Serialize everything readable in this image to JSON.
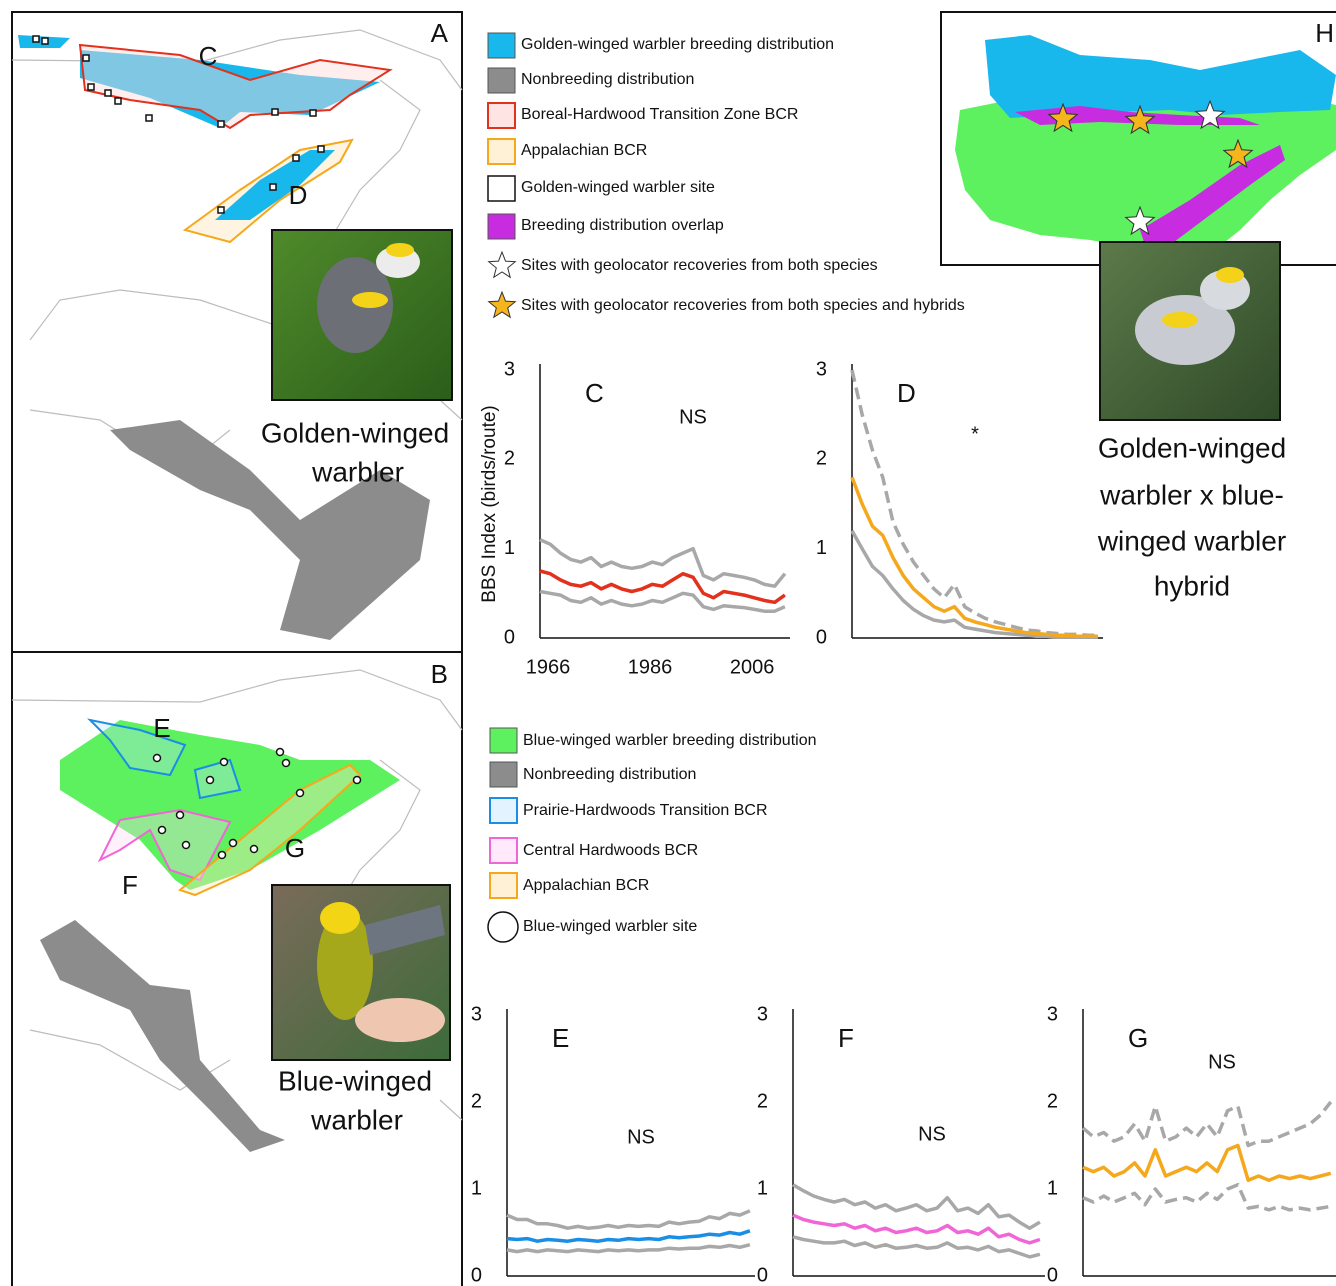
{
  "panel_a": {
    "label": "A",
    "region_labels": [
      "C",
      "D"
    ],
    "caption": [
      "Golden-winged",
      "warbler"
    ]
  },
  "panel_b": {
    "label": "B",
    "region_labels": [
      "E",
      "F",
      "G"
    ],
    "caption": [
      "Blue-winged",
      "warbler"
    ]
  },
  "panel_h": {
    "label": "H",
    "caption": [
      "Golden-winged",
      "warbler x blue-",
      "winged warbler",
      "hybrid"
    ]
  },
  "legend_a": [
    "Golden-winged warbler breeding distribution",
    "Nonbreeding distribution",
    "Boreal-Hardwood Transition Zone BCR",
    "Appalachian BCR",
    "Golden-winged warbler site",
    "Breeding distribution overlap",
    "Sites with geolocator recoveries from both species",
    "Sites with geolocator recoveries from both species and hybrids"
  ],
  "legend_b": [
    "Blue-winged warbler breeding distribution",
    "Nonbreeding distribution",
    "Prairie-Hardwoods Transition BCR",
    "Central Hardwoods BCR",
    "Appalachian BCR",
    "Blue-winged warbler site"
  ],
  "chart_data": [
    {
      "type": "line",
      "title": "C",
      "ylabel": "BBS Index (birds/route)",
      "annotation": "NS",
      "x": [
        1966,
        1968,
        1970,
        1972,
        1974,
        1976,
        1978,
        1980,
        1982,
        1984,
        1986,
        1988,
        1990,
        1992,
        1994,
        1996,
        1998,
        2000,
        2002,
        2004,
        2006,
        2008,
        2010,
        2012,
        2014
      ],
      "xlim": [
        1966,
        2015
      ],
      "xticks": [
        1966,
        1986,
        2006
      ],
      "ylim": [
        0,
        3
      ],
      "yticks": [
        0,
        1,
        2,
        3
      ],
      "series": [
        {
          "color": "#a8a8a8",
          "dashed": false,
          "values": [
            1.1,
            1.05,
            0.95,
            0.88,
            0.85,
            0.9,
            0.8,
            0.85,
            0.8,
            0.78,
            0.8,
            0.85,
            0.82,
            0.9,
            0.95,
            1.0,
            0.7,
            0.65,
            0.72,
            0.7,
            0.68,
            0.65,
            0.6,
            0.58,
            0.72
          ]
        },
        {
          "color": "#a8a8a8",
          "dashed": false,
          "values": [
            0.52,
            0.5,
            0.48,
            0.42,
            0.4,
            0.45,
            0.38,
            0.42,
            0.38,
            0.36,
            0.38,
            0.42,
            0.4,
            0.45,
            0.5,
            0.48,
            0.35,
            0.32,
            0.36,
            0.35,
            0.34,
            0.32,
            0.3,
            0.3,
            0.35
          ]
        },
        {
          "color": "#e2311d",
          "dashed": false,
          "values": [
            0.75,
            0.72,
            0.65,
            0.6,
            0.58,
            0.62,
            0.55,
            0.6,
            0.55,
            0.52,
            0.55,
            0.6,
            0.58,
            0.65,
            0.72,
            0.68,
            0.5,
            0.45,
            0.52,
            0.5,
            0.48,
            0.45,
            0.42,
            0.4,
            0.48
          ]
        }
      ]
    },
    {
      "type": "line",
      "title": "D",
      "annotation": "*",
      "x": [
        1966,
        1968,
        1970,
        1972,
        1974,
        1976,
        1978,
        1980,
        1982,
        1984,
        1986,
        1988,
        1990,
        1992,
        1994,
        1996,
        1998,
        2000,
        2002,
        2004,
        2006,
        2008,
        2010,
        2012,
        2014
      ],
      "xlim": [
        1966,
        2015
      ],
      "ylim": [
        0,
        3
      ],
      "yticks": [
        0,
        1,
        2,
        3
      ],
      "series": [
        {
          "color": "#a8a8a8",
          "dashed": true,
          "values": [
            3.0,
            2.5,
            2.1,
            1.8,
            1.3,
            1.05,
            0.85,
            0.7,
            0.55,
            0.45,
            0.6,
            0.35,
            0.28,
            0.22,
            0.18,
            0.15,
            0.12,
            0.09,
            0.08,
            0.06,
            0.05,
            0.04,
            0.04,
            0.03,
            0.03
          ]
        },
        {
          "color": "#a8a8a8",
          "dashed": false,
          "values": [
            1.2,
            1.0,
            0.8,
            0.7,
            0.55,
            0.42,
            0.32,
            0.25,
            0.2,
            0.18,
            0.2,
            0.12,
            0.1,
            0.08,
            0.06,
            0.05,
            0.04,
            0.03,
            0.02,
            0.02,
            0.01,
            0.01,
            0.01,
            0.01,
            0.01
          ]
        },
        {
          "color": "#f5a81c",
          "dashed": false,
          "values": [
            1.8,
            1.5,
            1.25,
            1.15,
            0.9,
            0.7,
            0.55,
            0.45,
            0.35,
            0.3,
            0.35,
            0.22,
            0.18,
            0.15,
            0.12,
            0.1,
            0.08,
            0.06,
            0.05,
            0.04,
            0.03,
            0.03,
            0.02,
            0.02,
            0.02
          ]
        }
      ]
    },
    {
      "type": "line",
      "title": "E",
      "annotation": "NS",
      "x": [
        1966,
        1968,
        1970,
        1972,
        1974,
        1976,
        1978,
        1980,
        1982,
        1984,
        1986,
        1988,
        1990,
        1992,
        1994,
        1996,
        1998,
        2000,
        2002,
        2004,
        2006,
        2008,
        2010,
        2012,
        2014
      ],
      "xlim": [
        1966,
        2015
      ],
      "ylim": [
        0,
        3
      ],
      "yticks": [
        0,
        1,
        2,
        3
      ],
      "series": [
        {
          "color": "#a8a8a8",
          "dashed": false,
          "values": [
            0.7,
            0.65,
            0.65,
            0.6,
            0.6,
            0.58,
            0.55,
            0.57,
            0.55,
            0.56,
            0.58,
            0.56,
            0.58,
            0.57,
            0.58,
            0.57,
            0.62,
            0.6,
            0.62,
            0.63,
            0.68,
            0.66,
            0.72,
            0.7,
            0.75
          ]
        },
        {
          "color": "#a8a8a8",
          "dashed": false,
          "values": [
            0.3,
            0.28,
            0.3,
            0.28,
            0.3,
            0.29,
            0.28,
            0.3,
            0.29,
            0.28,
            0.3,
            0.29,
            0.3,
            0.29,
            0.3,
            0.3,
            0.32,
            0.31,
            0.32,
            0.32,
            0.34,
            0.33,
            0.35,
            0.33,
            0.36
          ]
        },
        {
          "color": "#1a8ee6",
          "dashed": false,
          "values": [
            0.43,
            0.42,
            0.43,
            0.4,
            0.42,
            0.41,
            0.4,
            0.42,
            0.41,
            0.4,
            0.42,
            0.41,
            0.43,
            0.42,
            0.43,
            0.42,
            0.45,
            0.44,
            0.45,
            0.46,
            0.48,
            0.47,
            0.5,
            0.48,
            0.52
          ]
        }
      ]
    },
    {
      "type": "line",
      "title": "F",
      "annotation": "NS",
      "x": [
        1966,
        1968,
        1970,
        1972,
        1974,
        1976,
        1978,
        1980,
        1982,
        1984,
        1986,
        1988,
        1990,
        1992,
        1994,
        1996,
        1998,
        2000,
        2002,
        2004,
        2006,
        2008,
        2010,
        2012,
        2014
      ],
      "xlim": [
        1966,
        2015
      ],
      "ylim": [
        0,
        3
      ],
      "yticks": [
        0,
        1,
        2,
        3
      ],
      "series": [
        {
          "color": "#a8a8a8",
          "dashed": false,
          "values": [
            1.05,
            0.98,
            0.92,
            0.88,
            0.85,
            0.88,
            0.82,
            0.85,
            0.78,
            0.82,
            0.75,
            0.78,
            0.82,
            0.75,
            0.78,
            0.9,
            0.75,
            0.78,
            0.72,
            0.82,
            0.68,
            0.7,
            0.62,
            0.55,
            0.62
          ]
        },
        {
          "color": "#a8a8a8",
          "dashed": false,
          "values": [
            0.45,
            0.42,
            0.4,
            0.38,
            0.38,
            0.4,
            0.35,
            0.38,
            0.33,
            0.36,
            0.32,
            0.33,
            0.35,
            0.32,
            0.33,
            0.38,
            0.32,
            0.33,
            0.3,
            0.34,
            0.28,
            0.3,
            0.26,
            0.22,
            0.25
          ]
        },
        {
          "color": "#f066d6",
          "dashed": false,
          "values": [
            0.7,
            0.65,
            0.62,
            0.6,
            0.58,
            0.6,
            0.55,
            0.58,
            0.52,
            0.55,
            0.5,
            0.52,
            0.55,
            0.5,
            0.52,
            0.58,
            0.5,
            0.52,
            0.48,
            0.55,
            0.45,
            0.48,
            0.42,
            0.38,
            0.42
          ]
        }
      ]
    },
    {
      "type": "line",
      "title": "G",
      "annotation": "NS",
      "x": [
        1966,
        1968,
        1970,
        1972,
        1974,
        1976,
        1978,
        1980,
        1982,
        1984,
        1986,
        1988,
        1990,
        1992,
        1994,
        1996,
        1998,
        2000,
        2002,
        2004,
        2006,
        2008,
        2010,
        2012,
        2014
      ],
      "xlim": [
        1966,
        2015
      ],
      "ylim": [
        0,
        3
      ],
      "yticks": [
        0,
        1,
        2,
        3
      ],
      "series": [
        {
          "color": "#a8a8a8",
          "dashed": true,
          "values": [
            1.7,
            1.6,
            1.65,
            1.55,
            1.6,
            1.75,
            1.55,
            1.95,
            1.55,
            1.6,
            1.7,
            1.6,
            1.75,
            1.6,
            1.9,
            1.95,
            1.5,
            1.55,
            1.55,
            1.6,
            1.65,
            1.7,
            1.75,
            1.85,
            2.0
          ]
        },
        {
          "color": "#a8a8a8",
          "dashed": true,
          "values": [
            0.9,
            0.85,
            0.92,
            0.85,
            0.9,
            0.95,
            0.82,
            1.0,
            0.85,
            0.88,
            0.9,
            0.85,
            0.95,
            0.88,
            1.0,
            1.05,
            0.78,
            0.8,
            0.76,
            0.8,
            0.76,
            0.78,
            0.76,
            0.78,
            0.8
          ]
        },
        {
          "color": "#f5a81c",
          "dashed": false,
          "values": [
            1.25,
            1.2,
            1.25,
            1.15,
            1.2,
            1.3,
            1.15,
            1.45,
            1.15,
            1.2,
            1.25,
            1.2,
            1.3,
            1.2,
            1.45,
            1.5,
            1.1,
            1.15,
            1.1,
            1.15,
            1.12,
            1.15,
            1.12,
            1.15,
            1.18
          ]
        }
      ]
    }
  ]
}
